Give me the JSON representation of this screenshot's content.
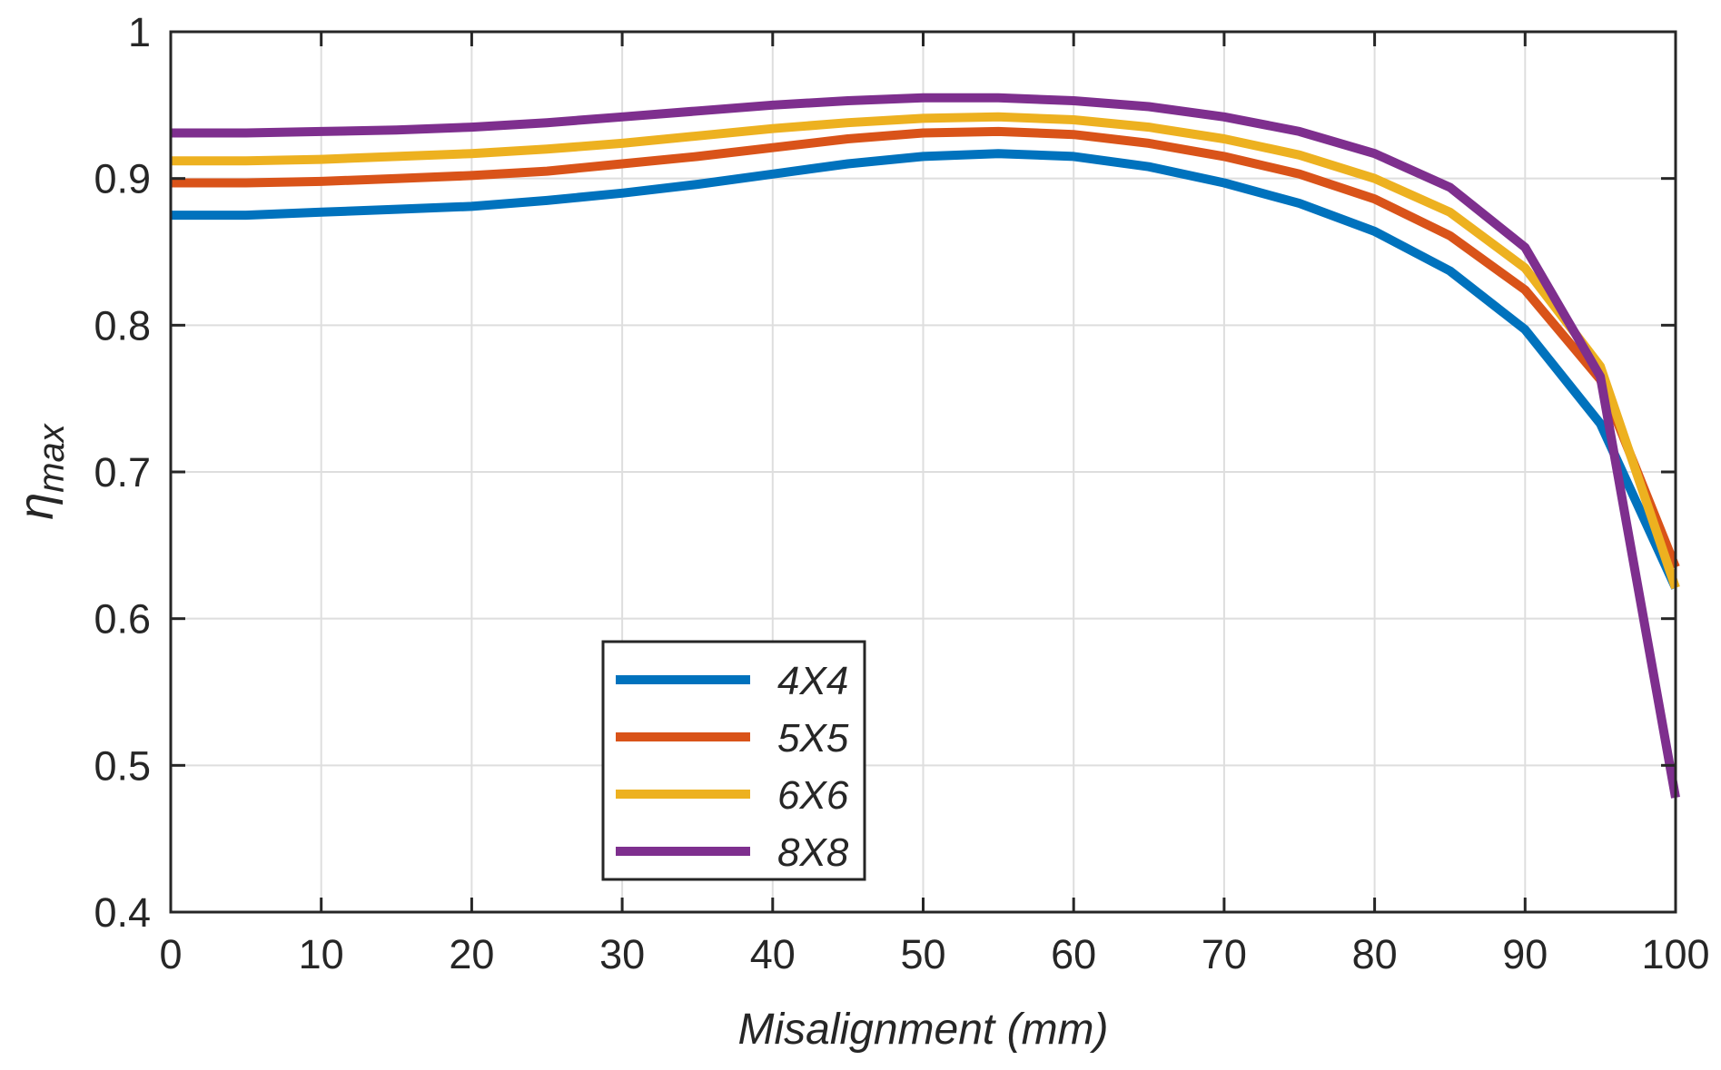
{
  "chart_data": {
    "type": "line",
    "title": "",
    "xlabel": "Misalignment (mm)",
    "ylabel_main": "η",
    "ylabel_sub": "max",
    "xlim": [
      0,
      100
    ],
    "ylim": [
      0.4,
      1.0
    ],
    "xticks": [
      0,
      10,
      20,
      30,
      40,
      50,
      60,
      70,
      80,
      90,
      100
    ],
    "xtick_labels": [
      "0",
      "10",
      "20",
      "30",
      "40",
      "50",
      "60",
      "70",
      "80",
      "90",
      "100"
    ],
    "yticks": [
      0.4,
      0.5,
      0.6,
      0.7,
      0.8,
      0.9,
      1.0
    ],
    "ytick_labels": [
      "0.4",
      "0.5",
      "0.6",
      "0.7",
      "0.8",
      "0.9",
      "1"
    ],
    "grid": true,
    "legend_position": "lower-left",
    "x": [
      0,
      5,
      10,
      15,
      20,
      25,
      30,
      35,
      40,
      45,
      50,
      55,
      60,
      65,
      70,
      75,
      80,
      85,
      90,
      95,
      100
    ],
    "series": [
      {
        "name": "4X4",
        "color": "#0072BD",
        "values": [
          0.875,
          0.875,
          0.877,
          0.879,
          0.881,
          0.885,
          0.89,
          0.896,
          0.903,
          0.91,
          0.915,
          0.917,
          0.915,
          0.908,
          0.897,
          0.883,
          0.864,
          0.837,
          0.797,
          0.733,
          0.621
        ]
      },
      {
        "name": "5X5",
        "color": "#D95319",
        "values": [
          0.897,
          0.897,
          0.898,
          0.9,
          0.902,
          0.905,
          0.91,
          0.915,
          0.921,
          0.927,
          0.931,
          0.932,
          0.93,
          0.924,
          0.915,
          0.903,
          0.886,
          0.861,
          0.824,
          0.763,
          0.635
        ]
      },
      {
        "name": "6X6",
        "color": "#EDB120",
        "values": [
          0.912,
          0.912,
          0.913,
          0.915,
          0.917,
          0.92,
          0.924,
          0.929,
          0.934,
          0.938,
          0.941,
          0.942,
          0.94,
          0.935,
          0.927,
          0.916,
          0.9,
          0.877,
          0.839,
          0.772,
          0.621
        ]
      },
      {
        "name": "8X8",
        "color": "#7E2F8E",
        "values": [
          0.931,
          0.931,
          0.932,
          0.933,
          0.935,
          0.938,
          0.942,
          0.946,
          0.95,
          0.953,
          0.955,
          0.955,
          0.953,
          0.949,
          0.942,
          0.932,
          0.917,
          0.894,
          0.853,
          0.765,
          0.478
        ]
      }
    ]
  }
}
